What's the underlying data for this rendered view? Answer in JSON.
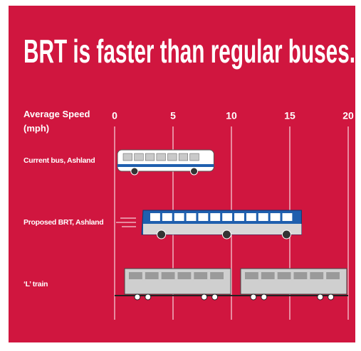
{
  "chart_data": {
    "type": "bar",
    "title": "BRT is faster than regular buses.",
    "x_label": [
      "Average Speed",
      "(mph)"
    ],
    "categories": [
      "Current bus, Ashland",
      "Proposed BRT, Ashland",
      "‘L’ train"
    ],
    "values": [
      8.5,
      16,
      20
    ],
    "xlim": [
      0,
      20
    ],
    "xticks": [
      0,
      5,
      10,
      15,
      20
    ],
    "grid": true
  }
}
